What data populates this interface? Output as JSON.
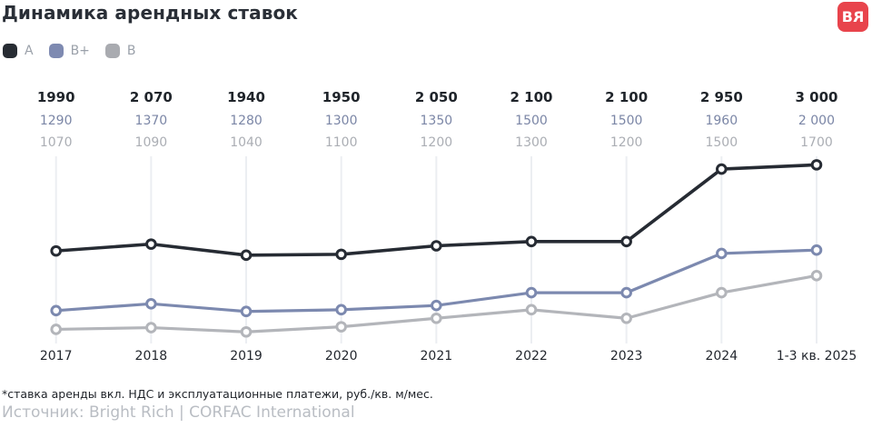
{
  "header": {
    "title": "Динамика арендных ставок",
    "logo_text": "BR"
  },
  "legend": [
    {
      "label": "A",
      "color": "#272c33"
    },
    {
      "label": "B+",
      "color": "#7e8ab1"
    },
    {
      "label": "B",
      "color": "#a9abb0"
    }
  ],
  "chart_data": {
    "type": "line",
    "title": "Динамика арендных ставок",
    "categories": [
      "2017",
      "2018",
      "2019",
      "2020",
      "2021",
      "2022",
      "2023",
      "2024",
      "1-3 кв. 2025"
    ],
    "series": [
      {
        "name": "A",
        "color": "#262b33",
        "label_color": "#1f242a",
        "values": [
          1990,
          2070,
          1940,
          1950,
          2050,
          2100,
          2100,
          2950,
          3000
        ],
        "labels": [
          "1990",
          "2 070",
          "1940",
          "1950",
          "2 050",
          "2 100",
          "2 100",
          "2 950",
          "3 000"
        ]
      },
      {
        "name": "B+",
        "color": "#7c89af",
        "label_color": "#7b86a6",
        "values": [
          1290,
          1370,
          1280,
          1300,
          1350,
          1500,
          1500,
          1960,
          2000
        ],
        "labels": [
          "1290",
          "1370",
          "1280",
          "1300",
          "1350",
          "1500",
          "1500",
          "1960",
          "2 000"
        ]
      },
      {
        "name": "B",
        "color": "#b3b5ba",
        "label_color": "#abaeb4",
        "values": [
          1070,
          1090,
          1040,
          1100,
          1200,
          1300,
          1200,
          1500,
          1700
        ],
        "labels": [
          "1070",
          "1090",
          "1040",
          "1100",
          "1200",
          "1300",
          "1200",
          "1500",
          "1700"
        ]
      }
    ],
    "ylim": [
      1000,
      3100
    ],
    "grid": "vertical-gridlines",
    "legend_position": "top-left"
  },
  "footnote": "*ставка аренды вкл. НДС и эксплуатационные платежи, руб./кв. м/мес.",
  "source": "Источник: Bright Rich | CORFAC International",
  "colors": {
    "accent_red": "#e8444c",
    "grid": "#eceef2",
    "title_text": "#2a2f37",
    "axis_text": "#23272e",
    "muted_text": "#9ba1aa"
  }
}
